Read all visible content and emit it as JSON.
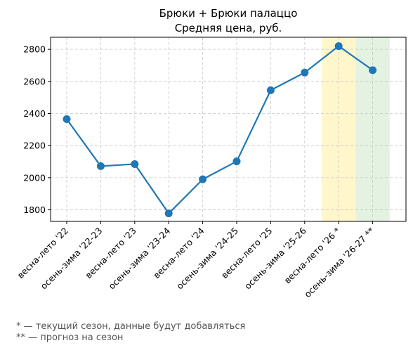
{
  "chart_data": {
    "type": "line",
    "title": "Брюки + Брюки палаццо",
    "subtitle": "Средняя цена, руб.",
    "categories": [
      "весна-лето '22",
      "осень-зима '22-23",
      "весна-лето '23",
      "осень-зима '23-24",
      "весна-лето '24",
      "осень-зима '24-25",
      "весна-лето '25",
      "осень-зима '25-26",
      "весна-лето '26 *",
      "осень-зима '26-27 **"
    ],
    "series": [
      {
        "values": [
          2365,
          2072,
          2085,
          1778,
          1990,
          2102,
          2545,
          2655,
          2820,
          2670
        ],
        "color": "#1f77b4"
      }
    ],
    "yticks": [
      1800,
      2000,
      2200,
      2400,
      2600,
      2800
    ],
    "ylim": [
      1728,
      2875
    ],
    "grid": true,
    "highlights": [
      {
        "category": "весна-лето '26 *",
        "color": "#fff6cc"
      },
      {
        "category": "осень-зима '26-27 **",
        "color": "#e3f2e1"
      }
    ]
  },
  "notes": [
    "* — текущий сезон, данные будут добавляться",
    "** — прогноз на сезон"
  ]
}
